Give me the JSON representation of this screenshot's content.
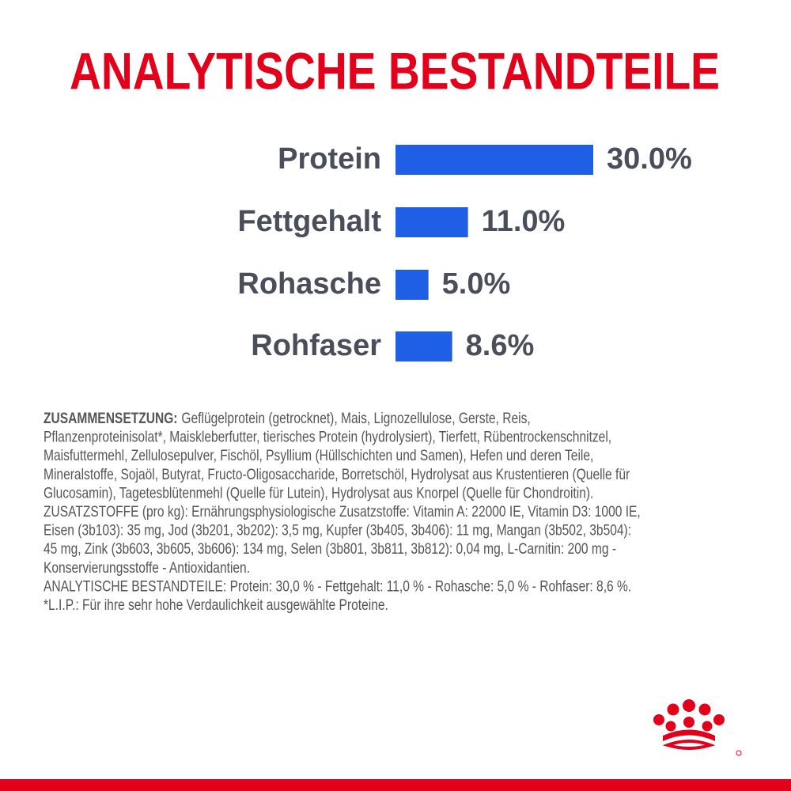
{
  "chart_data": {
    "type": "bar",
    "orientation": "horizontal",
    "title": "ANALYTISCHE BESTANDTEILE",
    "categories": [
      "Protein",
      "Fettgehalt",
      "Rohasche",
      "Rohfaser"
    ],
    "values": [
      30.0,
      11.0,
      5.0,
      8.6
    ],
    "value_labels": [
      "30.0%",
      "11.0%",
      "5.0%",
      "8.6%"
    ],
    "color": "#1f5fe6"
  },
  "composition": {
    "heading": "ZUSAMMENSETZUNG:",
    "lines": [
      "Geflügelprotein (getrocknet), Mais, Lignozellulose, Gerste, Reis,",
      "Pflanzenproteinisolat*, Maiskleberfutter, tierisches Protein (hydrolysiert), Tierfett, Rübentrockenschnitzel,",
      "Maisfuttermehl, Zellulosepulver, Fischöl, Psyllium (Hüllschichten und Samen), Hefen und deren Teile,",
      "Mineralstoffe, Sojaöl, Butyrat, Fructo-Oligosaccharide, Borretschöl, Hydrolysat aus Krustentieren (Quelle für",
      "Glucosamin), Tagetesblütenmehl (Quelle für Lutein), Hydrolysat aus Knorpel (Quelle für Chondroitin).",
      "ZUSATZSTOFFE (pro kg): Ernährungsphysiologische Zusatzstoffe: Vitamin A: 22000 IE, Vitamin D3: 1000 IE,",
      "Eisen (3b103): 35 mg, Jod (3b201, 3b202): 3,5 mg, Kupfer (3b405, 3b406): 11 mg, Mangan (3b502, 3b504):",
      "45 mg, Zink (3b603, 3b605, 3b606): 134 mg, Selen (3b801, 3b811, 3b812): 0,04 mg, L-Carnitin: 200 mg -",
      "Konservierungsstoffe - Antioxidantien.",
      "ANALYTISCHE BESTANDTEILE: Protein: 30,0 % - Fettgehalt: 11,0 % - Rohasche: 5,0 % - Rohfaser: 8,6 %.",
      "*L.I.P.: Für ihre sehr hohe Verdaulichkeit ausgewählte Proteine."
    ]
  }
}
